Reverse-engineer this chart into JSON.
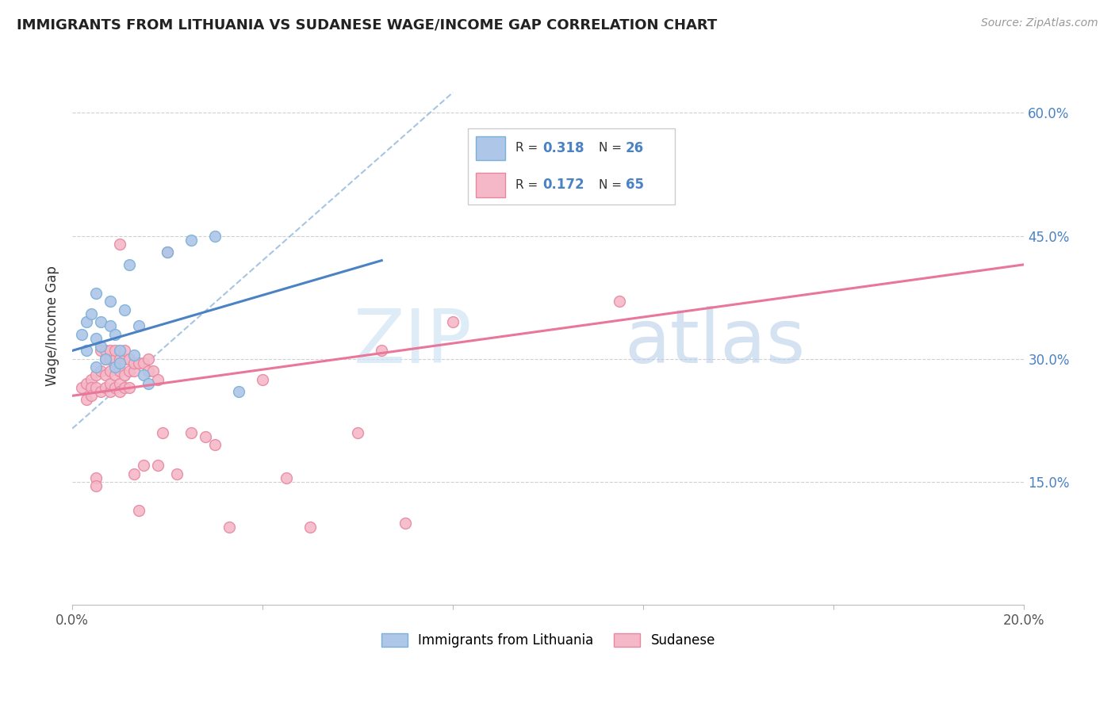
{
  "title": "IMMIGRANTS FROM LITHUANIA VS SUDANESE WAGE/INCOME GAP CORRELATION CHART",
  "source": "Source: ZipAtlas.com",
  "ylabel": "Wage/Income Gap",
  "ytick_labels": [
    "60.0%",
    "45.0%",
    "30.0%",
    "15.0%"
  ],
  "ytick_values": [
    0.6,
    0.45,
    0.3,
    0.15
  ],
  "xlim": [
    0.0,
    0.2
  ],
  "ylim": [
    0.0,
    0.68
  ],
  "legend_label_blue": "Immigrants from Lithuania",
  "legend_label_pink": "Sudanese",
  "blue_color": "#aec6e8",
  "pink_color": "#f4b8c8",
  "blue_edge": "#7ab0d8",
  "pink_edge": "#e888a0",
  "blue_line_color": "#4a82c4",
  "pink_line_color": "#e8779a",
  "dashed_line_color": "#9dbfe0",
  "blue_scatter_x": [
    0.002,
    0.003,
    0.003,
    0.004,
    0.005,
    0.005,
    0.005,
    0.006,
    0.006,
    0.007,
    0.008,
    0.008,
    0.009,
    0.009,
    0.01,
    0.01,
    0.011,
    0.012,
    0.013,
    0.014,
    0.015,
    0.016,
    0.02,
    0.025,
    0.03,
    0.035
  ],
  "blue_scatter_y": [
    0.33,
    0.345,
    0.31,
    0.355,
    0.38,
    0.325,
    0.29,
    0.345,
    0.315,
    0.3,
    0.37,
    0.34,
    0.29,
    0.33,
    0.31,
    0.295,
    0.36,
    0.415,
    0.305,
    0.34,
    0.28,
    0.27,
    0.43,
    0.445,
    0.45,
    0.26
  ],
  "pink_scatter_x": [
    0.002,
    0.003,
    0.003,
    0.004,
    0.004,
    0.004,
    0.005,
    0.005,
    0.005,
    0.005,
    0.006,
    0.006,
    0.006,
    0.007,
    0.007,
    0.007,
    0.007,
    0.008,
    0.008,
    0.008,
    0.008,
    0.008,
    0.009,
    0.009,
    0.009,
    0.009,
    0.01,
    0.01,
    0.01,
    0.01,
    0.011,
    0.011,
    0.011,
    0.011,
    0.012,
    0.012,
    0.012,
    0.013,
    0.013,
    0.013,
    0.014,
    0.014,
    0.015,
    0.015,
    0.016,
    0.016,
    0.017,
    0.018,
    0.018,
    0.019,
    0.02,
    0.022,
    0.025,
    0.028,
    0.03,
    0.033,
    0.04,
    0.045,
    0.05,
    0.06,
    0.065,
    0.07,
    0.08,
    0.115,
    0.01
  ],
  "pink_scatter_y": [
    0.265,
    0.27,
    0.25,
    0.275,
    0.265,
    0.255,
    0.155,
    0.145,
    0.265,
    0.28,
    0.26,
    0.285,
    0.31,
    0.265,
    0.28,
    0.3,
    0.31,
    0.285,
    0.26,
    0.3,
    0.31,
    0.27,
    0.265,
    0.28,
    0.3,
    0.31,
    0.27,
    0.285,
    0.26,
    0.3,
    0.265,
    0.28,
    0.3,
    0.31,
    0.285,
    0.3,
    0.265,
    0.16,
    0.285,
    0.295,
    0.115,
    0.295,
    0.17,
    0.295,
    0.285,
    0.3,
    0.285,
    0.17,
    0.275,
    0.21,
    0.43,
    0.16,
    0.21,
    0.205,
    0.195,
    0.095,
    0.275,
    0.155,
    0.095,
    0.21,
    0.31,
    0.1,
    0.345,
    0.37,
    0.44
  ],
  "blue_trend_x": [
    0.0,
    0.065
  ],
  "blue_trend_y": [
    0.31,
    0.42
  ],
  "pink_trend_x": [
    0.0,
    0.2
  ],
  "pink_trend_y": [
    0.255,
    0.415
  ],
  "dashed_trend_x": [
    0.0,
    0.08
  ],
  "dashed_trend_y": [
    0.215,
    0.625
  ],
  "watermark_zip": "ZIP",
  "watermark_atlas": "atlas",
  "scatter_size": 100
}
